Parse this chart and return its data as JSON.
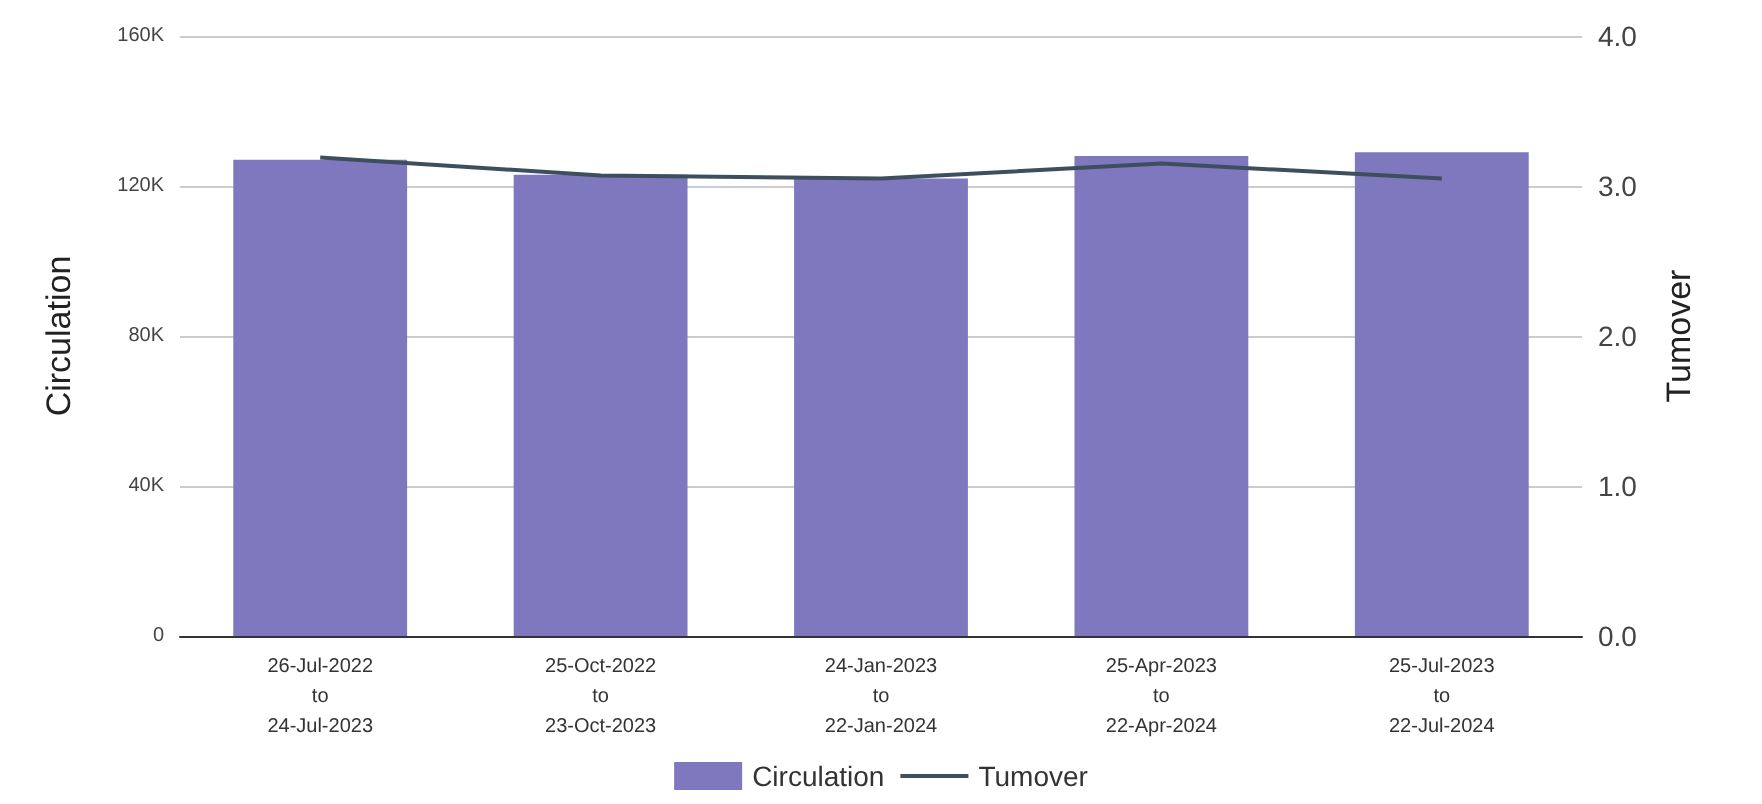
{
  "chart_data": {
    "type": "bar",
    "ylabel": "Circulation",
    "y2label": "Tumover",
    "categories": [
      "26-Jul-2022\nto\n24-Jul-2023",
      "25-Oct-2022\nto\n23-Oct-2023",
      "24-Jan-2023\nto\n22-Jan-2024",
      "25-Apr-2023\nto\n22-Apr-2024",
      "25-Jul-2023\nto\n22-Jul-2024"
    ],
    "series": [
      {
        "name": "Circulation",
        "color": "#8078be",
        "values": [
          127000,
          123000,
          122000,
          128000,
          129000
        ]
      },
      {
        "name": "Tumover",
        "type": "line",
        "axis": "y2",
        "color": "#3d4f5c",
        "values": [
          3.19,
          3.07,
          3.05,
          3.15,
          3.05
        ]
      }
    ],
    "ylim": [
      0,
      160000
    ],
    "yticks": [
      {
        "value": 0,
        "label": "0"
      },
      {
        "value": 40000,
        "label": "40K"
      },
      {
        "value": 80000,
        "label": "80K"
      },
      {
        "value": 120000,
        "label": "120K"
      },
      {
        "value": 160000,
        "label": "160K"
      }
    ],
    "y2lim": [
      0,
      4
    ],
    "y2ticks": [
      {
        "value": 0,
        "label": "0.0"
      },
      {
        "value": 1,
        "label": "1.0"
      },
      {
        "value": 2,
        "label": "2.0"
      },
      {
        "value": 3,
        "label": "3.0"
      },
      {
        "value": 4,
        "label": "4.0"
      }
    ],
    "grid": "y",
    "legend": "bottom",
    "marker": "none",
    "line_style": "solid"
  }
}
